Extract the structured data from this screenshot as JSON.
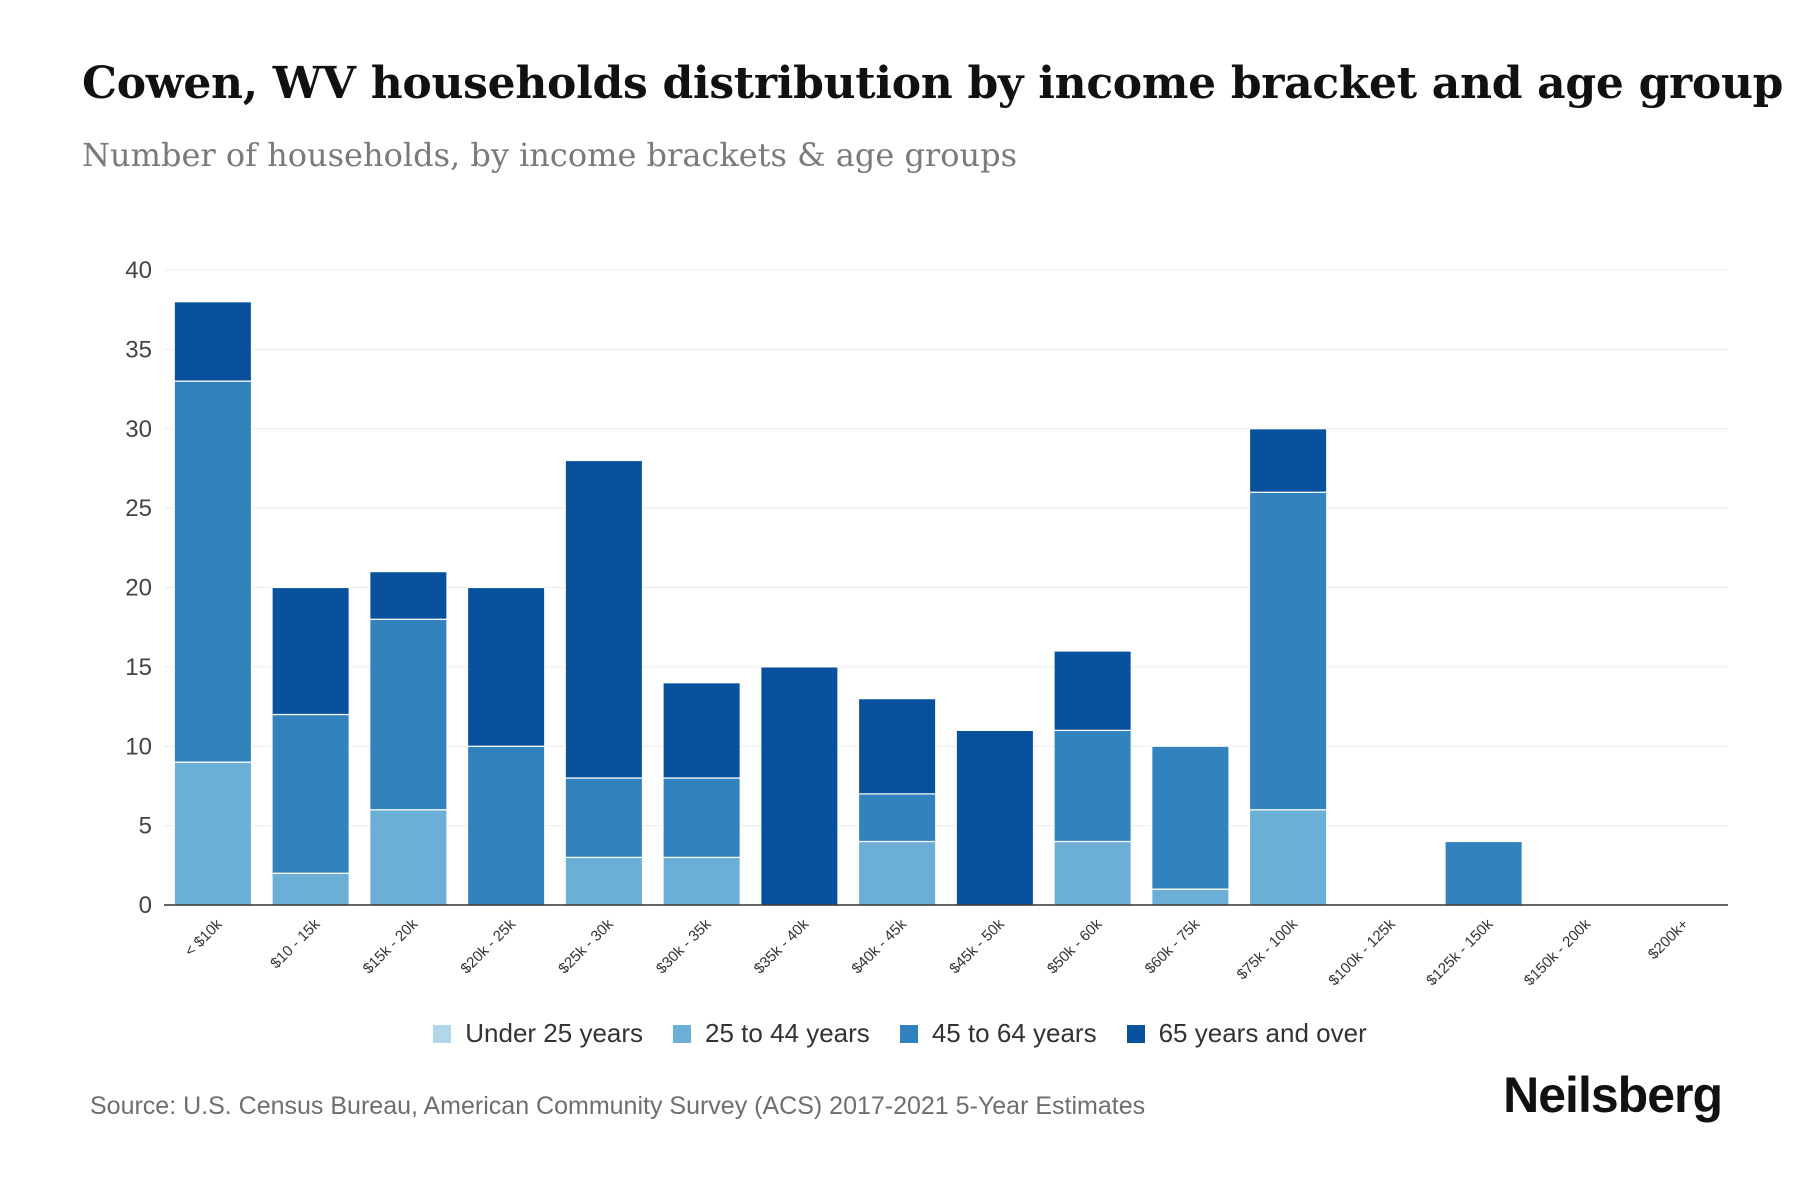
{
  "header": {
    "title": "Cowen, WV households distribution by income bracket and age group",
    "subtitle": "Number of households, by income brackets & age groups"
  },
  "footer": {
    "source": "Source: U.S. Census Bureau, American Community Survey (ACS) 2017-2021 5-Year Estimates",
    "brand": "Neilsberg"
  },
  "chart_data": {
    "type": "bar",
    "stacked": true,
    "title": "Cowen, WV households distribution by income bracket and age group",
    "subtitle": "Number of households, by income brackets & age groups",
    "xlabel": "",
    "ylabel": "",
    "ylim": [
      0,
      40
    ],
    "yticks": [
      0,
      5,
      10,
      15,
      20,
      25,
      30,
      35,
      40
    ],
    "grid": true,
    "legend_position": "bottom",
    "categories": [
      "< $10k",
      "$10 - 15k",
      "$15k - 20k",
      "$20k - 25k",
      "$25k - 30k",
      "$30k - 35k",
      "$35k - 40k",
      "$40k - 45k",
      "$45k - 50k",
      "$50k - 60k",
      "$60k - 75k",
      "$75k - 100k",
      "$100k - 125k",
      "$125k - 150k",
      "$150k - 200k",
      "$200k+"
    ],
    "series": [
      {
        "name": "Under 25 years",
        "color": "#b3d7ea",
        "values": [
          0,
          0,
          0,
          0,
          0,
          0,
          0,
          0,
          0,
          0,
          0,
          0,
          0,
          0,
          0,
          0
        ]
      },
      {
        "name": "25 to 44 years",
        "color": "#6baed6",
        "values": [
          9,
          2,
          6,
          0,
          3,
          3,
          0,
          4,
          0,
          4,
          1,
          6,
          0,
          0,
          0,
          0
        ]
      },
      {
        "name": "45 to 64 years",
        "color": "#3282bd",
        "values": [
          24,
          10,
          12,
          10,
          5,
          5,
          0,
          3,
          0,
          7,
          9,
          20,
          0,
          4,
          0,
          0
        ]
      },
      {
        "name": "65 years and over",
        "color": "#08519c",
        "values": [
          5,
          8,
          3,
          10,
          20,
          6,
          15,
          6,
          11,
          5,
          0,
          4,
          0,
          0,
          0,
          0
        ]
      }
    ]
  }
}
